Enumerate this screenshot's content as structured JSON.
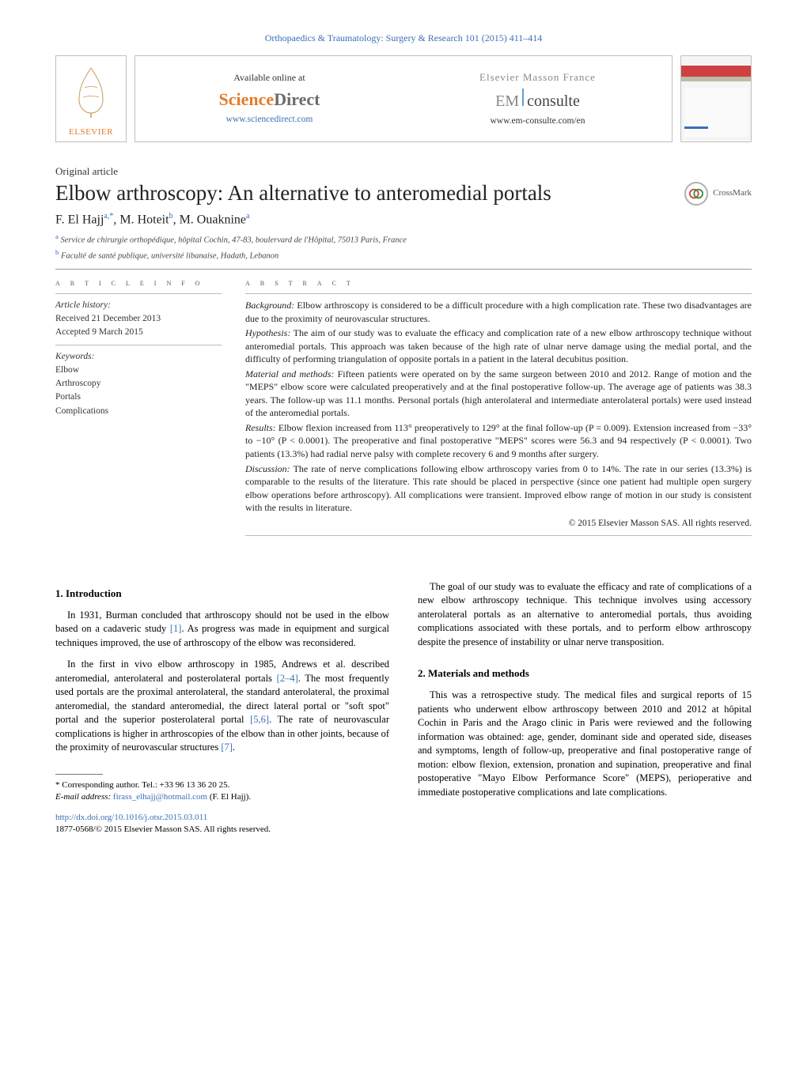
{
  "journal_ref": "Orthopaedics & Traumatology: Surgery & Research 101 (2015) 411–414",
  "header": {
    "elsevier": "ELSEVIER",
    "available": "Available online at",
    "sd_science": "Science",
    "sd_direct": "Direct",
    "sd_url": "www.sciencedirect.com",
    "masson": "Elsevier Masson France",
    "em": "EM",
    "consulte": "consulte",
    "em_url": "www.em-consulte.com/en",
    "crossmark": "CrossMark"
  },
  "article_type": "Original article",
  "title": "Elbow arthroscopy: An alternative to anteromedial portals",
  "authors_html": "F. El Hajj<sup>a,*</sup>, M. Hoteit<sup>b</sup>, M. Ouaknine<sup>a</sup>",
  "affiliations": [
    {
      "sup": "a",
      "text": "Service de chirurgie orthopédique, hôpital Cochin, 47-83, boulervard de l'Hôpital, 75013 Paris, France"
    },
    {
      "sup": "b",
      "text": "Faculté de santé publique, université libanaise, Hadath, Lebanon"
    }
  ],
  "labels": {
    "article_info": "a r t i c l e   i n f o",
    "abstract": "a b s t r a c t",
    "history": "Article history:",
    "keywords": "Keywords:"
  },
  "history": {
    "received": "Received 21 December 2013",
    "accepted": "Accepted 9 March 2015"
  },
  "keywords": [
    "Elbow",
    "Arthroscopy",
    "Portals",
    "Complications"
  ],
  "abstract": {
    "background_lead": "Background:",
    "background": "Elbow arthroscopy is considered to be a difficult procedure with a high complication rate. These two disadvantages are due to the proximity of neurovascular structures.",
    "hypothesis_lead": "Hypothesis:",
    "hypothesis": "The aim of our study was to evaluate the efficacy and complication rate of a new elbow arthroscopy technique without anteromedial portals. This approach was taken because of the high rate of ulnar nerve damage using the medial portal, and the difficulty of performing triangulation of opposite portals in a patient in the lateral decubitus position.",
    "material_lead": "Material and methods:",
    "material": "Fifteen patients were operated on by the same surgeon between 2010 and 2012. Range of motion and the \"MEPS\" elbow score were calculated preoperatively and at the final postoperative follow-up. The average age of patients was 38.3 years. The follow-up was 11.1 months. Personal portals (high anterolateral and intermediate anterolateral portals) were used instead of the anteromedial portals.",
    "results_lead": "Results:",
    "results": "Elbow flexion increased from 113° preoperatively to 129° at the final follow-up (P = 0.009). Extension increased from −33° to −10° (P < 0.0001). The preoperative and final postoperative \"MEPS\" scores were 56.3 and 94 respectively (P < 0.0001). Two patients (13.3%) had radial nerve palsy with complete recovery 6 and 9 months after surgery.",
    "discussion_lead": "Discussion:",
    "discussion": "The rate of nerve complications following elbow arthroscopy varies from 0 to 14%. The rate in our series (13.3%) is comparable to the results of the literature. This rate should be placed in perspective (since one patient had multiple open surgery elbow operations before arthroscopy). All complications were transient. Improved elbow range of motion in our study is consistent with the results in literature.",
    "copyright": "© 2015 Elsevier Masson SAS. All rights reserved."
  },
  "sections": {
    "intro_head": "1.  Introduction",
    "intro_p1a": "In 1931, Burman concluded that arthroscopy should not be used in the elbow based on a cadaveric study ",
    "intro_cite1": "[1]",
    "intro_p1b": ". As progress was made in equipment and surgical techniques improved, the use of arthroscopy of the elbow was reconsidered.",
    "intro_p2a": "In the first in vivo elbow arthroscopy in 1985, Andrews et al. described anteromedial, anterolateral and posterolateral portals ",
    "intro_cite2": "[2–4]",
    "intro_p2b": ". The most frequently used portals are the proximal anterolateral, the standard anterolateral, the proximal anteromedial, the standard anteromedial, the direct lateral portal or \"soft spot\" portal and the superior posterolateral portal ",
    "intro_cite3": "[5,6]",
    "intro_p2c": ". The rate of neurovascular complications is higher in arthroscopies of the elbow than in other joints, because of the proximity of neurovascular structures ",
    "intro_cite4": "[7]",
    "intro_p2d": ".",
    "intro_p3": "The goal of our study was to evaluate the efficacy and rate of complications of a new elbow arthroscopy technique. This technique involves using accessory anterolateral portals as an alternative to anteromedial portals, thus avoiding complications associated with these portals, and to perform elbow arthroscopy despite the presence of instability or ulnar nerve transposition.",
    "mm_head": "2.  Materials and methods",
    "mm_p1": "This was a retrospective study. The medical files and surgical reports of 15 patients who underwent elbow arthroscopy between 2010 and 2012 at hôpital Cochin in Paris and the Arago clinic in Paris were reviewed and the following information was obtained: age, gender, dominant side and operated side, diseases and symptoms, length of follow-up, preoperative and final postoperative range of motion: elbow flexion, extension, pronation and supination, preoperative and final postoperative \"Mayo Elbow Performance Score\" (MEPS), perioperative and immediate postoperative complications and late complications."
  },
  "footnote": {
    "corr": "*  Corresponding author. Tel.: +33 96 13 36 20 25.",
    "email_label": "E-mail address:",
    "email": "firass_elhajj@hotmail.com",
    "email_who": "(F. El Hajj)."
  },
  "doi": {
    "url": "http://dx.doi.org/10.1016/j.otsr.2015.03.011",
    "issn": "1877-0568/© 2015 Elsevier Masson SAS. All rights reserved."
  },
  "colors": {
    "link": "#3a6fb5",
    "orange": "#e37b2a"
  }
}
